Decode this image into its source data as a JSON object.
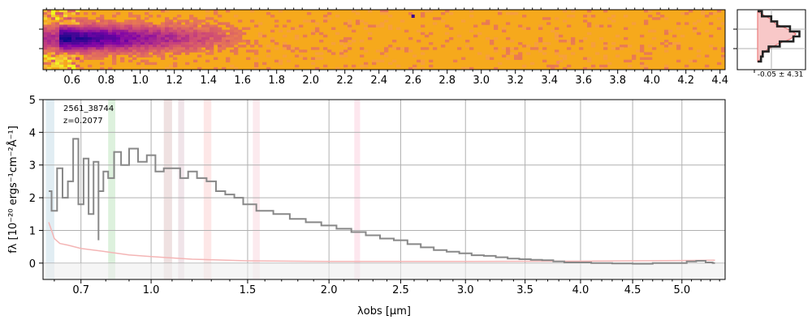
{
  "chart_data": [
    {
      "type": "heatmap",
      "panel": "2D spectrum",
      "x_ticks": [
        "0.6",
        "0.8",
        "1.0",
        "1.2",
        "1.4",
        "1.6",
        "1.8",
        "2.0",
        "2.2",
        "2.4",
        "2.6",
        "2.8",
        "3.0",
        "3.2",
        "3.4",
        "3.6",
        "3.8",
        "4.0",
        "4.2",
        "4.4"
      ],
      "x_tick_values": [
        0.6,
        0.8,
        1.0,
        1.2,
        1.4,
        1.6,
        1.8,
        2.0,
        2.2,
        2.4,
        2.6,
        2.8,
        3.0,
        3.2,
        3.4,
        3.6,
        3.8,
        4.0,
        4.2,
        4.4
      ],
      "xlim": [
        0.43,
        4.43
      ],
      "colormap": "plasma",
      "colors": {
        "background": "#f6a91c",
        "trace": "#3b0590",
        "bright": "#f0f921"
      }
    },
    {
      "type": "line",
      "panel": "spatial profile",
      "profile": [
        0.5,
        1.6,
        2.3,
        3.8,
        4.9,
        4.2,
        2.6,
        1.3,
        0.6,
        0.4
      ],
      "annotation": "-0.05 ± 4.31",
      "colors": {
        "data": "#222222",
        "model": "#e86a6a",
        "fill": "#f8c8c8"
      }
    },
    {
      "type": "line",
      "panel": "1D spectrum",
      "title": "2561_38744",
      "subtitle": "z=0.2077",
      "xlabel": "λ_obs [μm]",
      "ylabel": "f_λ [10^-20 ergs^-1 cm^-2 Å^-1]",
      "xlabel_display": "λobs [μm]",
      "ylabel_display": "fλ [10⁻²⁰ ergs⁻¹cm⁻²Å⁻¹]",
      "xscale": "sqrt",
      "xlim": [
        0.56,
        5.46
      ],
      "ylim": [
        -0.5,
        5
      ],
      "grid": true,
      "x_ticks": [
        "0.7",
        "1.0",
        "1.5",
        "2.0",
        "2.5",
        "3.0",
        "3.5",
        "4.0",
        "4.5",
        "5.0"
      ],
      "x_tick_values": [
        0.7,
        1.0,
        1.5,
        2.0,
        2.5,
        3.0,
        3.5,
        4.0,
        4.5,
        5.0
      ],
      "y_ticks": [
        "0",
        "1",
        "2",
        "3",
        "4",
        "5"
      ],
      "y_tick_values": [
        0,
        1,
        2,
        3,
        4,
        5
      ],
      "flux_x": [
        0.58,
        0.6,
        0.62,
        0.64,
        0.66,
        0.68,
        0.7,
        0.72,
        0.74,
        0.76,
        0.78,
        0.8,
        0.82,
        0.85,
        0.88,
        0.92,
        0.96,
        1.0,
        1.04,
        1.08,
        1.12,
        1.16,
        1.2,
        1.25,
        1.3,
        1.35,
        1.4,
        1.45,
        1.5,
        1.6,
        1.7,
        1.8,
        1.9,
        2.0,
        2.1,
        2.2,
        2.3,
        2.4,
        2.5,
        2.6,
        2.7,
        2.8,
        2.9,
        3.0,
        3.1,
        3.2,
        3.3,
        3.4,
        3.5,
        3.6,
        3.7,
        3.8,
        3.9,
        4.0,
        4.2,
        4.4,
        4.6,
        4.8,
        5.0,
        5.1,
        5.2,
        5.3,
        5.35
      ],
      "flux_y": [
        2.2,
        1.6,
        2.9,
        2.0,
        2.5,
        3.8,
        1.8,
        3.2,
        1.5,
        3.1,
        2.2,
        2.8,
        2.6,
        3.4,
        3.0,
        3.5,
        3.1,
        3.3,
        2.8,
        2.9,
        2.9,
        2.6,
        2.8,
        2.6,
        2.5,
        2.2,
        2.1,
        2.0,
        1.8,
        1.6,
        1.5,
        1.35,
        1.25,
        1.15,
        1.05,
        0.95,
        0.85,
        0.75,
        0.7,
        0.58,
        0.48,
        0.4,
        0.35,
        0.3,
        0.24,
        0.22,
        0.18,
        0.14,
        0.12,
        0.1,
        0.09,
        0.05,
        0.02,
        0.02,
        0.0,
        -0.01,
        -0.02,
        0.0,
        0.0,
        0.05,
        0.07,
        0.02,
        0.0
      ],
      "flux_min_x": [
        0.77
      ],
      "flux_min_y": [
        0.7
      ],
      "error_x": [
        0.58,
        0.6,
        0.62,
        0.65,
        0.7,
        0.8,
        0.9,
        1.0,
        1.2,
        1.5,
        2.0,
        3.0,
        4.0,
        5.0,
        5.35
      ],
      "error_y": [
        1.25,
        0.75,
        0.6,
        0.55,
        0.45,
        0.35,
        0.25,
        0.2,
        0.12,
        0.07,
        0.05,
        0.05,
        0.06,
        0.08,
        0.09
      ],
      "regions": [
        {
          "range": [
            0.57,
            0.6
          ],
          "color": "#d4e6ee",
          "opacity": 0.7
        },
        {
          "range": [
            0.81,
            0.84
          ],
          "color": "#d9efd9",
          "opacity": 0.9
        },
        {
          "range": [
            1.06,
            1.1
          ],
          "color": "#e8d4d4",
          "opacity": 0.7
        },
        {
          "range": [
            1.13,
            1.16
          ],
          "color": "#ead8e0",
          "opacity": 0.7
        },
        {
          "range": [
            1.26,
            1.3
          ],
          "color": "#fde4e4",
          "opacity": 0.9
        },
        {
          "range": [
            1.53,
            1.57
          ],
          "color": "#fce8ec",
          "opacity": 0.9
        },
        {
          "range": [
            2.17,
            2.21
          ],
          "color": "#fde4ec",
          "opacity": 0.9
        }
      ],
      "colors": {
        "flux": "#888888",
        "error": "#f4b5b5",
        "grid": "#b0b0b0"
      }
    }
  ]
}
